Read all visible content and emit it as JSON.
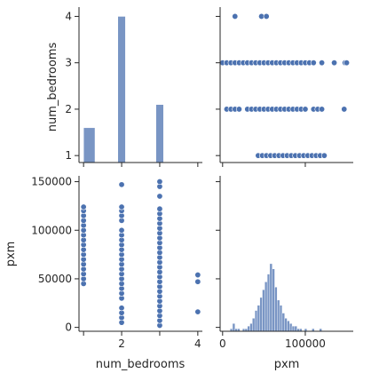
{
  "chart_data": {
    "type": "pairplot",
    "variables": [
      "num_bedrooms",
      "pxm"
    ],
    "color": "#4c72b0",
    "axis_labels": {
      "num_bedrooms": "num_bedrooms",
      "pxm": "pxm"
    },
    "num_bedrooms_ticks": [
      1,
      2,
      3,
      4
    ],
    "num_bedrooms_tick_labels": [
      "1",
      "2",
      "3",
      "4"
    ],
    "pxm_ticks": [
      0,
      50000,
      100000,
      150000
    ],
    "pxm_tick_labels_y": [
      "0",
      "50000",
      "100000",
      "150000"
    ],
    "pxm_ticks_x": [
      0,
      100000
    ],
    "pxm_tick_labels_x": [
      "0",
      "100000"
    ],
    "num_bedrooms_range": [
      0.88,
      4.12
    ],
    "pxm_range": [
      -4000,
      156000
    ],
    "pxm_hist_range": [
      -3000,
      158000
    ],
    "grid": false,
    "panels": [
      {
        "id": "num_bedrooms-hist",
        "type": "histogram",
        "x_var": "num_bedrooms",
        "bins": [
          {
            "x0": 1.0,
            "x1": 1.3,
            "height": 1.6
          },
          {
            "x0": 1.9,
            "x1": 2.1,
            "height": 4.0
          },
          {
            "x0": 2.9,
            "x1": 3.1,
            "height": 2.1
          },
          {
            "x0": 3.9,
            "x1": 4.1,
            "height": 0.02
          }
        ],
        "y_ticks": [
          1,
          2,
          3,
          4
        ],
        "y_tick_labels": [
          "1",
          "2",
          "3",
          "4"
        ],
        "y_range": [
          0.85,
          4.2
        ],
        "y_label": "num_bedrooms"
      },
      {
        "id": "pxm-vs-num_bedrooms",
        "type": "scatter",
        "x_var": "pxm",
        "y_var": "num_bedrooms",
        "points": [
          {
            "x": 15000,
            "y": 4
          },
          {
            "x": 47000,
            "y": 4
          },
          {
            "x": 53000,
            "y": 4
          },
          {
            "x": 0,
            "y": 3
          },
          {
            "x": 5000,
            "y": 3
          },
          {
            "x": 10000,
            "y": 3
          },
          {
            "x": 15000,
            "y": 3
          },
          {
            "x": 20000,
            "y": 3
          },
          {
            "x": 25000,
            "y": 3
          },
          {
            "x": 30000,
            "y": 3
          },
          {
            "x": 35000,
            "y": 3
          },
          {
            "x": 40000,
            "y": 3
          },
          {
            "x": 45000,
            "y": 3
          },
          {
            "x": 50000,
            "y": 3
          },
          {
            "x": 55000,
            "y": 3
          },
          {
            "x": 60000,
            "y": 3
          },
          {
            "x": 65000,
            "y": 3
          },
          {
            "x": 70000,
            "y": 3
          },
          {
            "x": 75000,
            "y": 3
          },
          {
            "x": 80000,
            "y": 3
          },
          {
            "x": 85000,
            "y": 3
          },
          {
            "x": 90000,
            "y": 3
          },
          {
            "x": 95000,
            "y": 3
          },
          {
            "x": 100000,
            "y": 3
          },
          {
            "x": 105000,
            "y": 3
          },
          {
            "x": 110000,
            "y": 3
          },
          {
            "x": 120000,
            "y": 3
          },
          {
            "x": 135000,
            "y": 3
          },
          {
            "x": 148000,
            "y": 3
          },
          {
            "x": 150000,
            "y": 3
          },
          {
            "x": 5000,
            "y": 2
          },
          {
            "x": 10000,
            "y": 2
          },
          {
            "x": 15000,
            "y": 2
          },
          {
            "x": 20000,
            "y": 2
          },
          {
            "x": 30000,
            "y": 2
          },
          {
            "x": 35000,
            "y": 2
          },
          {
            "x": 40000,
            "y": 2
          },
          {
            "x": 45000,
            "y": 2
          },
          {
            "x": 50000,
            "y": 2
          },
          {
            "x": 55000,
            "y": 2
          },
          {
            "x": 60000,
            "y": 2
          },
          {
            "x": 65000,
            "y": 2
          },
          {
            "x": 70000,
            "y": 2
          },
          {
            "x": 75000,
            "y": 2
          },
          {
            "x": 80000,
            "y": 2
          },
          {
            "x": 85000,
            "y": 2
          },
          {
            "x": 90000,
            "y": 2
          },
          {
            "x": 95000,
            "y": 2
          },
          {
            "x": 100000,
            "y": 2
          },
          {
            "x": 110000,
            "y": 2
          },
          {
            "x": 115000,
            "y": 2
          },
          {
            "x": 120000,
            "y": 2
          },
          {
            "x": 147000,
            "y": 2
          },
          {
            "x": 43000,
            "y": 1
          },
          {
            "x": 48000,
            "y": 1
          },
          {
            "x": 53000,
            "y": 1
          },
          {
            "x": 58000,
            "y": 1
          },
          {
            "x": 63000,
            "y": 1
          },
          {
            "x": 68000,
            "y": 1
          },
          {
            "x": 73000,
            "y": 1
          },
          {
            "x": 78000,
            "y": 1
          },
          {
            "x": 83000,
            "y": 1
          },
          {
            "x": 88000,
            "y": 1
          },
          {
            "x": 93000,
            "y": 1
          },
          {
            "x": 98000,
            "y": 1
          },
          {
            "x": 103000,
            "y": 1
          },
          {
            "x": 108000,
            "y": 1
          },
          {
            "x": 113000,
            "y": 1
          },
          {
            "x": 118000,
            "y": 1
          },
          {
            "x": 123000,
            "y": 1
          }
        ]
      },
      {
        "id": "num_bedrooms-vs-pxm",
        "type": "scatter",
        "x_var": "num_bedrooms",
        "y_var": "pxm",
        "points": [
          {
            "x": 1,
            "y": 45000
          },
          {
            "x": 1,
            "y": 50000
          },
          {
            "x": 1,
            "y": 55000
          },
          {
            "x": 1,
            "y": 60000
          },
          {
            "x": 1,
            "y": 65000
          },
          {
            "x": 1,
            "y": 70000
          },
          {
            "x": 1,
            "y": 75000
          },
          {
            "x": 1,
            "y": 80000
          },
          {
            "x": 1,
            "y": 85000
          },
          {
            "x": 1,
            "y": 90000
          },
          {
            "x": 1,
            "y": 95000
          },
          {
            "x": 1,
            "y": 100000
          },
          {
            "x": 1,
            "y": 105000
          },
          {
            "x": 1,
            "y": 110000
          },
          {
            "x": 1,
            "y": 115000
          },
          {
            "x": 1,
            "y": 120000
          },
          {
            "x": 1,
            "y": 124000
          },
          {
            "x": 2,
            "y": 5000
          },
          {
            "x": 2,
            "y": 10000
          },
          {
            "x": 2,
            "y": 15000
          },
          {
            "x": 2,
            "y": 20000
          },
          {
            "x": 2,
            "y": 30000
          },
          {
            "x": 2,
            "y": 35000
          },
          {
            "x": 2,
            "y": 40000
          },
          {
            "x": 2,
            "y": 45000
          },
          {
            "x": 2,
            "y": 50000
          },
          {
            "x": 2,
            "y": 55000
          },
          {
            "x": 2,
            "y": 60000
          },
          {
            "x": 2,
            "y": 65000
          },
          {
            "x": 2,
            "y": 70000
          },
          {
            "x": 2,
            "y": 75000
          },
          {
            "x": 2,
            "y": 80000
          },
          {
            "x": 2,
            "y": 85000
          },
          {
            "x": 2,
            "y": 90000
          },
          {
            "x": 2,
            "y": 95000
          },
          {
            "x": 2,
            "y": 100000
          },
          {
            "x": 2,
            "y": 110000
          },
          {
            "x": 2,
            "y": 115000
          },
          {
            "x": 2,
            "y": 120000
          },
          {
            "x": 2,
            "y": 124000
          },
          {
            "x": 2,
            "y": 147000
          },
          {
            "x": 3,
            "y": 2000
          },
          {
            "x": 3,
            "y": 7000
          },
          {
            "x": 3,
            "y": 12000
          },
          {
            "x": 3,
            "y": 17000
          },
          {
            "x": 3,
            "y": 22000
          },
          {
            "x": 3,
            "y": 27000
          },
          {
            "x": 3,
            "y": 32000
          },
          {
            "x": 3,
            "y": 37000
          },
          {
            "x": 3,
            "y": 42000
          },
          {
            "x": 3,
            "y": 47000
          },
          {
            "x": 3,
            "y": 52000
          },
          {
            "x": 3,
            "y": 57000
          },
          {
            "x": 3,
            "y": 62000
          },
          {
            "x": 3,
            "y": 67000
          },
          {
            "x": 3,
            "y": 72000
          },
          {
            "x": 3,
            "y": 77000
          },
          {
            "x": 3,
            "y": 82000
          },
          {
            "x": 3,
            "y": 87000
          },
          {
            "x": 3,
            "y": 92000
          },
          {
            "x": 3,
            "y": 97000
          },
          {
            "x": 3,
            "y": 102000
          },
          {
            "x": 3,
            "y": 107000
          },
          {
            "x": 3,
            "y": 112000
          },
          {
            "x": 3,
            "y": 117000
          },
          {
            "x": 3,
            "y": 122000
          },
          {
            "x": 3,
            "y": 135000
          },
          {
            "x": 3,
            "y": 145000
          },
          {
            "x": 3,
            "y": 150000
          },
          {
            "x": 4,
            "y": 16000
          },
          {
            "x": 4,
            "y": 47000
          },
          {
            "x": 4,
            "y": 54000
          }
        ]
      },
      {
        "id": "pxm-hist",
        "type": "histogram",
        "x_var": "pxm",
        "bin_width": 3000,
        "bins": [
          {
            "x0": 9000,
            "x1": 12000,
            "height": 1
          },
          {
            "x0": 12000,
            "x1": 15000,
            "height": 3
          },
          {
            "x0": 15000,
            "x1": 18000,
            "height": 1
          },
          {
            "x0": 18000,
            "x1": 21000,
            "height": 1
          },
          {
            "x0": 24000,
            "x1": 27000,
            "height": 1
          },
          {
            "x0": 27000,
            "x1": 30000,
            "height": 1
          },
          {
            "x0": 30000,
            "x1": 33000,
            "height": 2
          },
          {
            "x0": 33000,
            "x1": 36000,
            "height": 3
          },
          {
            "x0": 36000,
            "x1": 39000,
            "height": 5
          },
          {
            "x0": 39000,
            "x1": 42000,
            "height": 8
          },
          {
            "x0": 42000,
            "x1": 45000,
            "height": 10
          },
          {
            "x0": 45000,
            "x1": 48000,
            "height": 13
          },
          {
            "x0": 48000,
            "x1": 51000,
            "height": 16
          },
          {
            "x0": 51000,
            "x1": 54000,
            "height": 19
          },
          {
            "x0": 54000,
            "x1": 57000,
            "height": 22
          },
          {
            "x0": 57000,
            "x1": 60000,
            "height": 26
          },
          {
            "x0": 60000,
            "x1": 63000,
            "height": 24
          },
          {
            "x0": 63000,
            "x1": 66000,
            "height": 17
          },
          {
            "x0": 66000,
            "x1": 69000,
            "height": 12
          },
          {
            "x0": 69000,
            "x1": 72000,
            "height": 10
          },
          {
            "x0": 72000,
            "x1": 75000,
            "height": 7
          },
          {
            "x0": 75000,
            "x1": 78000,
            "height": 5
          },
          {
            "x0": 78000,
            "x1": 81000,
            "height": 4
          },
          {
            "x0": 81000,
            "x1": 84000,
            "height": 3
          },
          {
            "x0": 84000,
            "x1": 87000,
            "height": 2
          },
          {
            "x0": 87000,
            "x1": 90000,
            "height": 2
          },
          {
            "x0": 90000,
            "x1": 93000,
            "height": 1
          },
          {
            "x0": 93000,
            "x1": 96000,
            "height": 1
          },
          {
            "x0": 99000,
            "x1": 102000,
            "height": 1
          },
          {
            "x0": 108000,
            "x1": 111000,
            "height": 1
          },
          {
            "x0": 117000,
            "x1": 120000,
            "height": 1
          }
        ]
      }
    ]
  }
}
